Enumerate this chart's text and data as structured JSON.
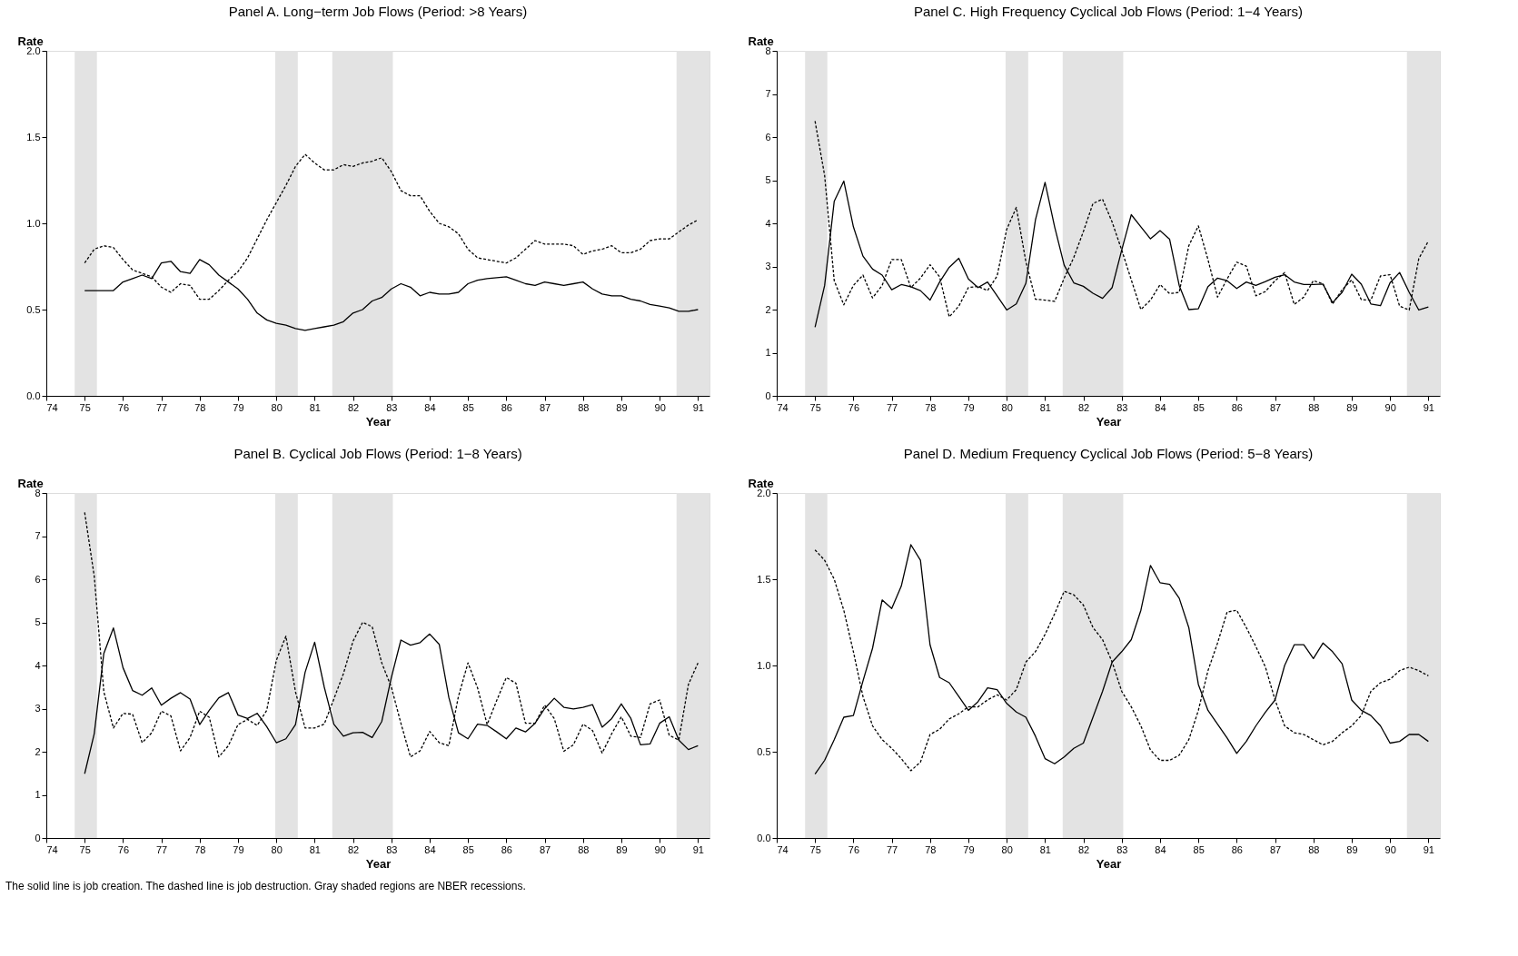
{
  "chart_data": [
    {
      "type": "line",
      "title": "Panel A. Long−term Job Flows (Period: >8 Years)",
      "xlabel": "Year",
      "ylabel": "Rate",
      "x": [
        75,
        75.25,
        75.5,
        75.75,
        76,
        76.25,
        76.5,
        76.75,
        77,
        77.25,
        77.5,
        77.75,
        78,
        78.25,
        78.5,
        78.75,
        79,
        79.25,
        79.5,
        79.75,
        80,
        80.25,
        80.5,
        80.75,
        81,
        81.25,
        81.5,
        81.75,
        82,
        82.25,
        82.5,
        82.75,
        83,
        83.25,
        83.5,
        83.75,
        84,
        84.25,
        84.5,
        84.75,
        85,
        85.25,
        85.5,
        85.75,
        86,
        86.25,
        86.5,
        86.75,
        87,
        87.25,
        87.5,
        87.75,
        88,
        88.25,
        88.5,
        88.75,
        89,
        89.25,
        89.5,
        89.75,
        90,
        90.25,
        90.5,
        90.75,
        91
      ],
      "series": [
        {
          "color": "#000000",
          "line_style": "solid",
          "values": [
            0.61,
            0.61,
            0.61,
            0.61,
            0.66,
            0.68,
            0.7,
            0.68,
            0.77,
            0.78,
            0.72,
            0.71,
            0.79,
            0.76,
            0.7,
            0.66,
            0.62,
            0.56,
            0.48,
            0.44,
            0.42,
            0.41,
            0.39,
            0.38,
            0.39,
            0.4,
            0.41,
            0.43,
            0.48,
            0.5,
            0.55,
            0.57,
            0.62,
            0.65,
            0.63,
            0.58,
            0.6,
            0.59,
            0.59,
            0.6,
            0.65,
            0.67,
            0.68,
            0.685,
            0.69,
            0.67,
            0.65,
            0.64,
            0.66,
            0.65,
            0.64,
            0.65,
            0.66,
            0.62,
            0.59,
            0.58,
            0.58,
            0.56,
            0.55,
            0.53,
            0.52,
            0.51,
            0.49,
            0.49,
            0.5
          ]
        },
        {
          "color": "#000000",
          "line_style": "dashed",
          "values": [
            0.77,
            0.85,
            0.87,
            0.86,
            0.79,
            0.73,
            0.71,
            0.69,
            0.63,
            0.6,
            0.65,
            0.64,
            0.56,
            0.56,
            0.61,
            0.67,
            0.72,
            0.8,
            0.91,
            1.02,
            1.12,
            1.22,
            1.33,
            1.4,
            1.35,
            1.31,
            1.31,
            1.34,
            1.33,
            1.35,
            1.36,
            1.38,
            1.3,
            1.19,
            1.16,
            1.16,
            1.07,
            1.0,
            0.98,
            0.94,
            0.85,
            0.8,
            0.79,
            0.78,
            0.77,
            0.8,
            0.85,
            0.9,
            0.88,
            0.88,
            0.88,
            0.87,
            0.82,
            0.84,
            0.85,
            0.87,
            0.83,
            0.83,
            0.85,
            0.9,
            0.91,
            0.91,
            0.95,
            0.99,
            1.02
          ]
        }
      ],
      "xlim": [
        74,
        91.3
      ],
      "xticks": [
        74,
        75,
        76,
        77,
        78,
        79,
        80,
        81,
        82,
        83,
        84,
        85,
        86,
        87,
        88,
        89,
        90,
        91
      ],
      "ylim": [
        0,
        2
      ],
      "yticks": [
        {
          "value": 0,
          "label": "0.0"
        },
        {
          "value": 0.5,
          "label": "0.5"
        },
        {
          "value": 1,
          "label": "1.0"
        },
        {
          "value": 1.5,
          "label": "1.5"
        },
        {
          "value": 2,
          "label": "2.0"
        }
      ],
      "bands": [
        {
          "axis": "x",
          "from": 74.74,
          "to": 75.32,
          "color": "#e3e3e3"
        },
        {
          "axis": "x",
          "from": 79.97,
          "to": 80.56,
          "color": "#e3e3e3"
        },
        {
          "axis": "x",
          "from": 81.46,
          "to": 83.04,
          "color": "#e3e3e3"
        },
        {
          "axis": "x",
          "from": 90.44,
          "to": 91.3,
          "color": "#e3e3e3"
        }
      ]
    },
    {
      "type": "line",
      "title": "Panel C. High Frequency Cyclical Job Flows (Period: 1−4 Years)",
      "xlabel": "Year",
      "ylabel": "Rate",
      "x": [
        75,
        75.25,
        75.5,
        75.75,
        76,
        76.25,
        76.5,
        76.75,
        77,
        77.25,
        77.5,
        77.75,
        78,
        78.25,
        78.5,
        78.75,
        79,
        79.25,
        79.5,
        79.75,
        80,
        80.25,
        80.5,
        80.75,
        81,
        81.25,
        81.5,
        81.75,
        82,
        82.25,
        82.5,
        82.75,
        83,
        83.25,
        83.5,
        83.75,
        84,
        84.25,
        84.5,
        84.75,
        85,
        85.25,
        85.5,
        85.75,
        86,
        86.25,
        86.5,
        86.75,
        87,
        87.25,
        87.5,
        87.75,
        88,
        88.25,
        88.5,
        88.75,
        89,
        89.25,
        89.5,
        89.75,
        90,
        90.25,
        90.5,
        90.75,
        91
      ],
      "series": [
        {
          "color": "#000000",
          "line_style": "solid",
          "values": [
            1.59,
            2.56,
            4.51,
            4.98,
            3.92,
            3.24,
            2.94,
            2.8,
            2.46,
            2.58,
            2.53,
            2.44,
            2.22,
            2.64,
            2.98,
            3.19,
            2.71,
            2.51,
            2.64,
            2.32,
            1.99,
            2.13,
            2.61,
            4.08,
            4.95,
            3.92,
            3.03,
            2.62,
            2.54,
            2.38,
            2.26,
            2.51,
            3.38,
            4.2,
            3.92,
            3.64,
            3.83,
            3.63,
            2.56,
            2.0,
            2.02,
            2.53,
            2.73,
            2.67,
            2.49,
            2.64,
            2.56,
            2.65,
            2.75,
            2.81,
            2.64,
            2.58,
            2.58,
            2.59,
            2.16,
            2.4,
            2.82,
            2.59,
            2.13,
            2.09,
            2.62,
            2.86,
            2.4,
            1.99,
            2.06
          ]
        },
        {
          "color": "#000000",
          "line_style": "dashed",
          "values": [
            6.37,
            5.11,
            2.67,
            2.11,
            2.56,
            2.8,
            2.27,
            2.56,
            3.16,
            3.16,
            2.51,
            2.73,
            3.04,
            2.76,
            1.83,
            2.08,
            2.51,
            2.54,
            2.44,
            2.78,
            3.86,
            4.37,
            3.11,
            2.24,
            2.22,
            2.19,
            2.73,
            3.21,
            3.81,
            4.46,
            4.56,
            4.03,
            3.38,
            2.69,
            2.0,
            2.22,
            2.58,
            2.37,
            2.4,
            3.48,
            3.94,
            3.16,
            2.29,
            2.71,
            3.1,
            3.01,
            2.32,
            2.42,
            2.67,
            2.86,
            2.12,
            2.29,
            2.67,
            2.6,
            2.13,
            2.46,
            2.69,
            2.23,
            2.22,
            2.78,
            2.81,
            2.08,
            1.99,
            3.18,
            3.59
          ]
        }
      ],
      "xlim": [
        74,
        91.3
      ],
      "xticks": [
        74,
        75,
        76,
        77,
        78,
        79,
        80,
        81,
        82,
        83,
        84,
        85,
        86,
        87,
        88,
        89,
        90,
        91
      ],
      "ylim": [
        0,
        8
      ],
      "yticks": [
        0,
        1,
        2,
        3,
        4,
        5,
        6,
        7,
        8
      ],
      "bands": [
        {
          "axis": "x",
          "from": 74.74,
          "to": 75.32,
          "color": "#e3e3e3"
        },
        {
          "axis": "x",
          "from": 79.97,
          "to": 80.56,
          "color": "#e3e3e3"
        },
        {
          "axis": "x",
          "from": 81.46,
          "to": 83.04,
          "color": "#e3e3e3"
        },
        {
          "axis": "x",
          "from": 90.44,
          "to": 91.3,
          "color": "#e3e3e3"
        }
      ]
    },
    {
      "type": "line",
      "title": "Panel B. Cyclical Job Flows (Period: 1−8 Years)",
      "xlabel": "Year",
      "ylabel": "Rate",
      "annotations": [
        "The solid line is job creation.  The dashed line is job destruction.  Gray shaded regions are NBER recessions."
      ],
      "x": [
        75,
        75.25,
        75.5,
        75.75,
        76,
        76.25,
        76.5,
        76.75,
        77,
        77.25,
        77.5,
        77.75,
        78,
        78.25,
        78.5,
        78.75,
        79,
        79.25,
        79.5,
        79.75,
        80,
        80.25,
        80.5,
        80.75,
        81,
        81.25,
        81.5,
        81.75,
        82,
        82.25,
        82.5,
        82.75,
        83,
        83.25,
        83.5,
        83.75,
        84,
        84.25,
        84.5,
        84.75,
        85,
        85.25,
        85.5,
        85.75,
        86,
        86.25,
        86.5,
        86.75,
        87,
        87.25,
        87.5,
        87.75,
        88,
        88.25,
        88.5,
        88.75,
        89,
        89.25,
        89.5,
        89.75,
        90,
        90.25,
        90.5,
        90.75,
        91
      ],
      "series": [
        {
          "color": "#000000",
          "line_style": "solid",
          "values": [
            1.49,
            2.42,
            4.28,
            4.87,
            3.95,
            3.42,
            3.31,
            3.48,
            3.08,
            3.24,
            3.37,
            3.22,
            2.63,
            2.96,
            3.25,
            3.37,
            2.85,
            2.77,
            2.89,
            2.58,
            2.21,
            2.3,
            2.63,
            3.84,
            4.54,
            3.5,
            2.64,
            2.36,
            2.44,
            2.45,
            2.33,
            2.7,
            3.72,
            4.59,
            4.47,
            4.53,
            4.73,
            4.49,
            3.26,
            2.44,
            2.3,
            2.64,
            2.61,
            2.46,
            2.3,
            2.55,
            2.46,
            2.66,
            3.0,
            3.24,
            3.03,
            2.99,
            3.03,
            3.09,
            2.57,
            2.77,
            3.11,
            2.77,
            2.16,
            2.18,
            2.66,
            2.81,
            2.27,
            2.05,
            2.14
          ]
        },
        {
          "color": "#000000",
          "line_style": "dashed",
          "values": [
            7.55,
            6.07,
            3.39,
            2.55,
            2.89,
            2.87,
            2.21,
            2.44,
            2.94,
            2.83,
            2.02,
            2.33,
            2.94,
            2.8,
            1.88,
            2.14,
            2.63,
            2.75,
            2.61,
            2.96,
            4.12,
            4.68,
            3.39,
            2.55,
            2.55,
            2.64,
            3.22,
            3.81,
            4.56,
            5.0,
            4.9,
            4.06,
            3.5,
            2.66,
            1.88,
            2.02,
            2.47,
            2.21,
            2.14,
            3.28,
            4.06,
            3.48,
            2.63,
            3.19,
            3.72,
            3.59,
            2.66,
            2.66,
            3.08,
            2.77,
            2.01,
            2.16,
            2.64,
            2.49,
            1.97,
            2.42,
            2.81,
            2.36,
            2.33,
            3.11,
            3.2,
            2.38,
            2.27,
            3.56,
            4.06
          ]
        }
      ],
      "xlim": [
        74,
        91.3
      ],
      "xticks": [
        74,
        75,
        76,
        77,
        78,
        79,
        80,
        81,
        82,
        83,
        84,
        85,
        86,
        87,
        88,
        89,
        90,
        91
      ],
      "ylim": [
        0,
        8
      ],
      "yticks": [
        0,
        1,
        2,
        3,
        4,
        5,
        6,
        7,
        8
      ],
      "bands": [
        {
          "axis": "x",
          "from": 74.74,
          "to": 75.32,
          "color": "#e3e3e3"
        },
        {
          "axis": "x",
          "from": 79.97,
          "to": 80.56,
          "color": "#e3e3e3"
        },
        {
          "axis": "x",
          "from": 81.46,
          "to": 83.04,
          "color": "#e3e3e3"
        },
        {
          "axis": "x",
          "from": 90.44,
          "to": 91.3,
          "color": "#e3e3e3"
        }
      ]
    },
    {
      "type": "line",
      "title": "Panel D. Medium Frequency Cyclical Job Flows (Period: 5−8 Years)",
      "xlabel": "Year",
      "ylabel": "Rate",
      "x": [
        75,
        75.25,
        75.5,
        75.75,
        76,
        76.25,
        76.5,
        76.75,
        77,
        77.25,
        77.5,
        77.75,
        78,
        78.25,
        78.5,
        78.75,
        79,
        79.25,
        79.5,
        79.75,
        80,
        80.25,
        80.5,
        80.75,
        81,
        81.25,
        81.5,
        81.75,
        82,
        82.25,
        82.5,
        82.75,
        83,
        83.25,
        83.5,
        83.75,
        84,
        84.25,
        84.5,
        84.75,
        85,
        85.25,
        85.5,
        85.75,
        86,
        86.25,
        86.5,
        86.75,
        87,
        87.25,
        87.5,
        87.75,
        88,
        88.25,
        88.5,
        88.75,
        89,
        89.25,
        89.5,
        89.75,
        90,
        90.25,
        90.5,
        90.75,
        91
      ],
      "series": [
        {
          "color": "#000000",
          "line_style": "solid",
          "values": [
            0.37,
            0.45,
            0.57,
            0.7,
            0.71,
            0.91,
            1.1,
            1.38,
            1.33,
            1.46,
            1.7,
            1.61,
            1.12,
            0.93,
            0.9,
            0.82,
            0.74,
            0.79,
            0.87,
            0.86,
            0.78,
            0.73,
            0.7,
            0.59,
            0.46,
            0.43,
            0.47,
            0.52,
            0.55,
            0.7,
            0.85,
            1.02,
            1.08,
            1.15,
            1.32,
            1.58,
            1.48,
            1.47,
            1.39,
            1.22,
            0.89,
            0.74,
            0.66,
            0.58,
            0.49,
            0.56,
            0.65,
            0.73,
            0.8,
            1.0,
            1.12,
            1.12,
            1.04,
            1.13,
            1.08,
            1.01,
            0.8,
            0.74,
            0.71,
            0.65,
            0.55,
            0.56,
            0.6,
            0.6,
            0.56
          ]
        },
        {
          "color": "#000000",
          "line_style": "dashed",
          "values": [
            1.67,
            1.61,
            1.5,
            1.32,
            1.08,
            0.82,
            0.65,
            0.57,
            0.52,
            0.46,
            0.39,
            0.44,
            0.6,
            0.63,
            0.69,
            0.72,
            0.76,
            0.76,
            0.8,
            0.83,
            0.8,
            0.86,
            1.02,
            1.08,
            1.18,
            1.3,
            1.43,
            1.41,
            1.35,
            1.22,
            1.15,
            1.02,
            0.85,
            0.76,
            0.65,
            0.51,
            0.45,
            0.45,
            0.48,
            0.57,
            0.74,
            0.97,
            1.13,
            1.31,
            1.32,
            1.22,
            1.11,
            0.99,
            0.8,
            0.65,
            0.61,
            0.6,
            0.57,
            0.54,
            0.56,
            0.61,
            0.65,
            0.71,
            0.85,
            0.9,
            0.92,
            0.97,
            0.99,
            0.97,
            0.94
          ]
        }
      ],
      "xlim": [
        74,
        91.3
      ],
      "xticks": [
        74,
        75,
        76,
        77,
        78,
        79,
        80,
        81,
        82,
        83,
        84,
        85,
        86,
        87,
        88,
        89,
        90,
        91
      ],
      "ylim": [
        0,
        2
      ],
      "yticks": [
        {
          "value": 0,
          "label": "0.0"
        },
        {
          "value": 0.5,
          "label": "0.5"
        },
        {
          "value": 1,
          "label": "1.0"
        },
        {
          "value": 1.5,
          "label": "1.5"
        },
        {
          "value": 2,
          "label": "2.0"
        }
      ],
      "bands": [
        {
          "axis": "x",
          "from": 74.74,
          "to": 75.32,
          "color": "#e3e3e3"
        },
        {
          "axis": "x",
          "from": 79.97,
          "to": 80.56,
          "color": "#e3e3e3"
        },
        {
          "axis": "x",
          "from": 81.46,
          "to": 83.04,
          "color": "#e3e3e3"
        },
        {
          "axis": "x",
          "from": 90.44,
          "to": 91.3,
          "color": "#e3e3e3"
        }
      ]
    }
  ]
}
